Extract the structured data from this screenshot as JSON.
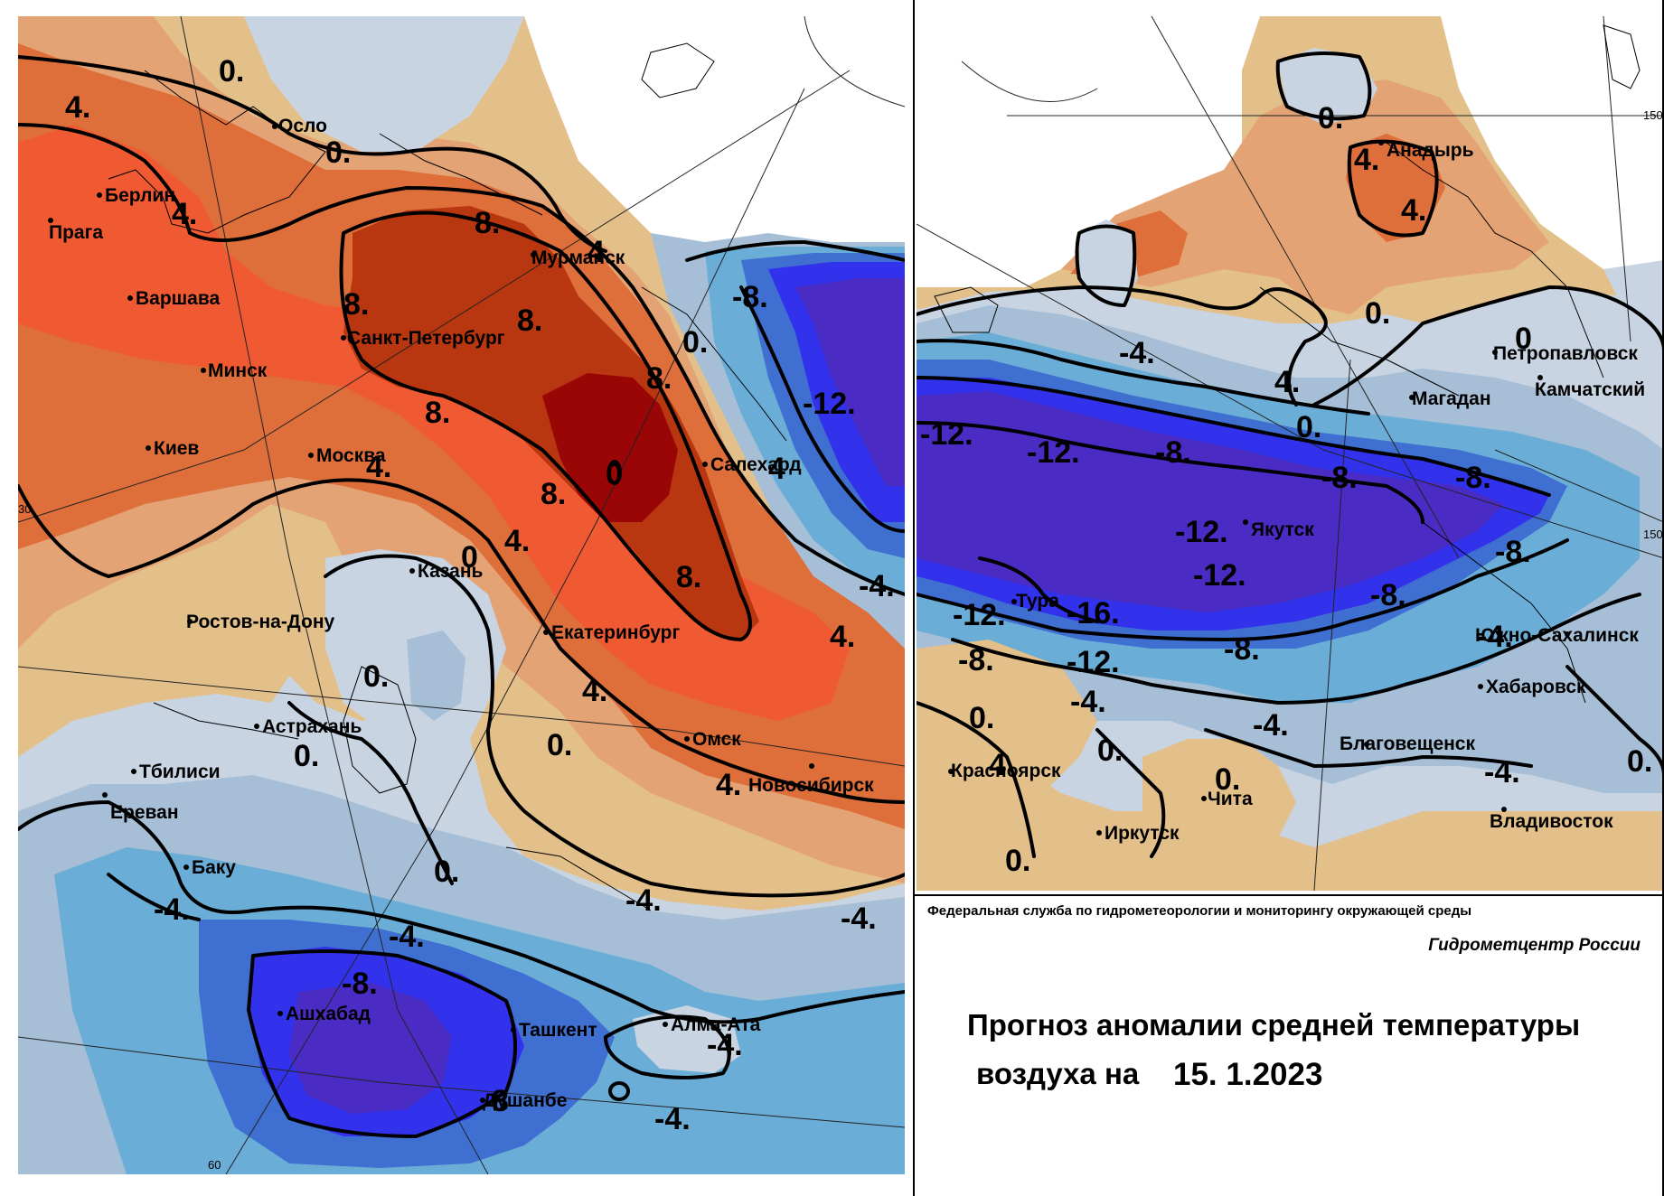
{
  "caption": {
    "agency": "Федеральная служба по гидрометеорологии и мониторингу окружающей среды",
    "center": "Гидрометцентр России",
    "title_line1": "Прогноз аномалии средней температуры",
    "title_line2_prefix": "воздуха на",
    "date": "15. 1.2023"
  },
  "colors": {
    "warm_1": "#e3c08a",
    "warm_2": "#e4a375",
    "warm_3": "#de6e3a",
    "warm_4": "#f05a32",
    "warm_5": "#b83610",
    "warm_6": "#9a0606",
    "neutral": "#c9d4e2",
    "cool_1": "#a6bfd6",
    "cool_2": "#6aadd7",
    "cool_3": "#3f6fd1",
    "cool_4": "#3232ec",
    "cool_5": "#4a2bc4"
  },
  "west_panel": {
    "cities": [
      {
        "name": "Осло"
      },
      {
        "name": "Берлин"
      },
      {
        "name": "Прага"
      },
      {
        "name": "Варшава"
      },
      {
        "name": "Санкт-Петербург"
      },
      {
        "name": "Минск"
      },
      {
        "name": "Мурманск"
      },
      {
        "name": "Киев"
      },
      {
        "name": "Москва"
      },
      {
        "name": "Салехард"
      },
      {
        "name": "Казань"
      },
      {
        "name": "Ростов-на-Дону"
      },
      {
        "name": "Екатеринбург"
      },
      {
        "name": "Астрахань"
      },
      {
        "name": "Омск"
      },
      {
        "name": "Тбилиси"
      },
      {
        "name": "Новосибирск"
      },
      {
        "name": "Ереван"
      },
      {
        "name": "Баку"
      },
      {
        "name": "Ашхабад"
      },
      {
        "name": "Ташкент"
      },
      {
        "name": "Алма-Ата"
      },
      {
        "name": "Душанбе"
      }
    ],
    "isotherm_labels": [
      {
        "text": "0."
      },
      {
        "text": "4."
      },
      {
        "text": "0."
      },
      {
        "text": "4."
      },
      {
        "text": "8."
      },
      {
        "text": "4"
      },
      {
        "text": "8."
      },
      {
        "text": "8."
      },
      {
        "text": "-8."
      },
      {
        "text": "0."
      },
      {
        "text": "8."
      },
      {
        "text": "8."
      },
      {
        "text": "-12."
      },
      {
        "text": "4."
      },
      {
        "text": "0"
      },
      {
        "text": "4"
      },
      {
        "text": "8."
      },
      {
        "text": "4."
      },
      {
        "text": "0"
      },
      {
        "text": "8."
      },
      {
        "text": "-4."
      },
      {
        "text": "4."
      },
      {
        "text": "0."
      },
      {
        "text": "4."
      },
      {
        "text": "0."
      },
      {
        "text": "0."
      },
      {
        "text": "4."
      },
      {
        "text": "0."
      },
      {
        "text": "-4."
      },
      {
        "text": "-4."
      },
      {
        "text": "-4."
      },
      {
        "text": "-4."
      },
      {
        "text": "-8."
      },
      {
        "text": "-4."
      },
      {
        "text": "8"
      },
      {
        "text": "-4."
      }
    ],
    "grid_labels": [
      {
        "text": "30"
      },
      {
        "text": "60"
      }
    ]
  },
  "east_panel": {
    "cities": [
      {
        "name": "Анадырь"
      },
      {
        "name": "Магадан"
      },
      {
        "name": "Петропавловск"
      },
      {
        "name": "Камчатский"
      },
      {
        "name": "Якутск"
      },
      {
        "name": "Тура"
      },
      {
        "name": "Южно-Сахалинск"
      },
      {
        "name": "Хабаровск"
      },
      {
        "name": "Благовещенск"
      },
      {
        "name": "Красноярск"
      },
      {
        "name": "Чита"
      },
      {
        "name": "Иркутск"
      },
      {
        "name": "Владивосток"
      }
    ],
    "isotherm_labels": [
      {
        "text": "0."
      },
      {
        "text": "4."
      },
      {
        "text": "4."
      },
      {
        "text": "0."
      },
      {
        "text": "0"
      },
      {
        "text": "-4."
      },
      {
        "text": "4."
      },
      {
        "text": "0."
      },
      {
        "text": "-12."
      },
      {
        "text": "-12."
      },
      {
        "text": "-8."
      },
      {
        "text": "-8."
      },
      {
        "text": "-8."
      },
      {
        "text": "-12."
      },
      {
        "text": "-8."
      },
      {
        "text": "-12."
      },
      {
        "text": "-8."
      },
      {
        "text": "-12."
      },
      {
        "text": "-16."
      },
      {
        "text": "-12."
      },
      {
        "text": "-8."
      },
      {
        "text": "-8."
      },
      {
        "text": "-4."
      },
      {
        "text": "-4."
      },
      {
        "text": "0."
      },
      {
        "text": "-4."
      },
      {
        "text": "0."
      },
      {
        "text": "0."
      },
      {
        "text": "-4."
      },
      {
        "text": "0."
      },
      {
        "text": "4"
      },
      {
        "text": "0."
      }
    ],
    "grid_labels": [
      {
        "text": "150"
      },
      {
        "text": "150"
      }
    ]
  }
}
